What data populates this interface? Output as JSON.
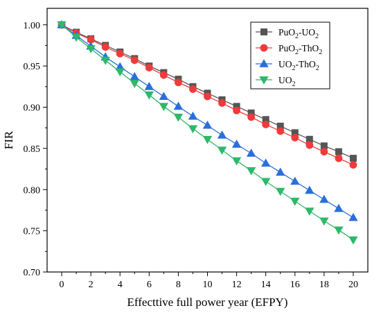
{
  "chart_data": {
    "type": "line",
    "title": "",
    "xlabel": "Effecttive full power year (EFPY)",
    "ylabel": "FIR",
    "xlim": [
      -1,
      21
    ],
    "ylim": [
      0.7,
      1.02
    ],
    "xticks": [
      0,
      2,
      4,
      6,
      8,
      10,
      12,
      14,
      16,
      18,
      20
    ],
    "xtick_labels": [
      "0",
      "2",
      "4",
      "6",
      "8",
      "10",
      "12",
      "14",
      "16",
      "18",
      "20"
    ],
    "yticks": [
      0.7,
      0.75,
      0.8,
      0.85,
      0.9,
      0.95,
      1.0
    ],
    "ytick_labels": [
      "0.70",
      "0.75",
      "0.80",
      "0.85",
      "0.90",
      "0.95",
      "1.00"
    ],
    "grid": false,
    "legend_position": "top-right",
    "x": [
      0,
      1,
      2,
      3,
      4,
      5,
      6,
      7,
      8,
      9,
      10,
      11,
      12,
      13,
      14,
      15,
      16,
      17,
      18,
      19,
      20
    ],
    "series": [
      {
        "name": "PuO₂-UO₂",
        "name_base": "PuO",
        "name_sub": "2",
        "name_mid": "-UO",
        "name_sub2": "2",
        "color": "#555555",
        "marker": "square",
        "values": [
          1.0,
          0.991,
          0.983,
          0.975,
          0.967,
          0.959,
          0.95,
          0.942,
          0.934,
          0.925,
          0.917,
          0.909,
          0.901,
          0.893,
          0.885,
          0.877,
          0.869,
          0.861,
          0.853,
          0.846,
          0.838
        ]
      },
      {
        "name": "PuO₂-ThO₂",
        "name_base": "PuO",
        "name_sub": "2",
        "name_mid": "-ThO",
        "name_sub2": "2",
        "color": "#ef3b3b",
        "marker": "circle",
        "values": [
          1.0,
          0.99,
          0.982,
          0.973,
          0.965,
          0.957,
          0.948,
          0.939,
          0.93,
          0.922,
          0.913,
          0.905,
          0.896,
          0.888,
          0.879,
          0.871,
          0.863,
          0.854,
          0.846,
          0.838,
          0.83
        ]
      },
      {
        "name": "UO₂-ThO₂",
        "name_base": "UO",
        "name_sub": "2",
        "name_mid": "-ThO",
        "name_sub2": "2",
        "color": "#2a6fdb",
        "marker": "triangle-up",
        "values": [
          1.0,
          0.987,
          0.974,
          0.961,
          0.949,
          0.937,
          0.925,
          0.913,
          0.901,
          0.889,
          0.878,
          0.866,
          0.855,
          0.844,
          0.832,
          0.821,
          0.81,
          0.799,
          0.788,
          0.777,
          0.766
        ]
      },
      {
        "name": "UO₂",
        "name_base": "UO",
        "name_sub": "2",
        "name_mid": "",
        "name_sub2": "",
        "color": "#2fb86a",
        "marker": "triangle-down",
        "values": [
          1.0,
          0.985,
          0.971,
          0.957,
          0.943,
          0.929,
          0.915,
          0.901,
          0.888,
          0.874,
          0.861,
          0.848,
          0.835,
          0.823,
          0.81,
          0.798,
          0.786,
          0.774,
          0.762,
          0.751,
          0.739
        ]
      }
    ]
  }
}
